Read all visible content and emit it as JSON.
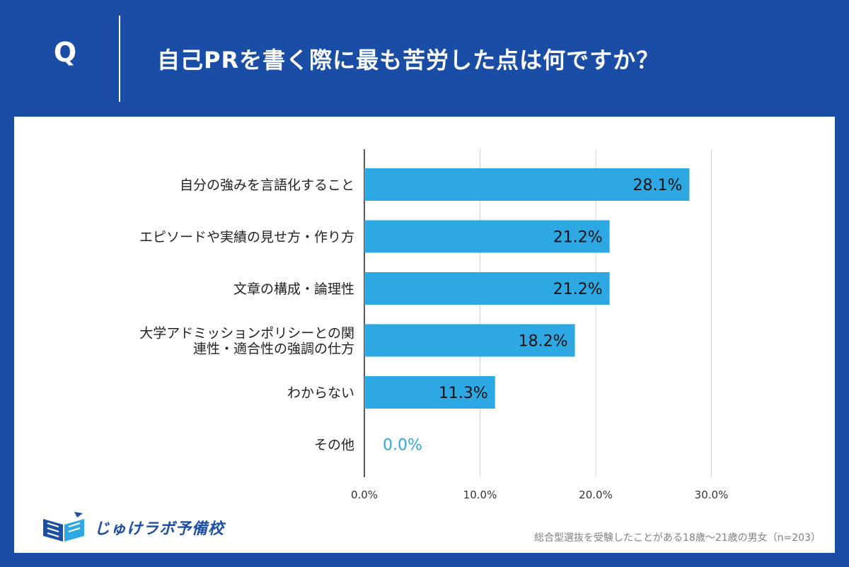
{
  "question": {
    "mark": "Q",
    "text": "自己PRを書く際に最も苦労した点は何ですか？"
  },
  "colors": {
    "background": "#1a4ea6",
    "bar": "#2ea8e2",
    "zero_label": "#2ea8e2",
    "grid": "#d0d0d0",
    "axis": "#222222"
  },
  "chart_data": {
    "type": "bar",
    "orientation": "horizontal",
    "categories": [
      [
        "自分の強みを言語化すること"
      ],
      [
        "エピソードや実績の見せ方・作り方"
      ],
      [
        "文章の構成・論理性"
      ],
      [
        "大学アドミッションポリシーとの関",
        "連性・適合性の強調の仕方"
      ],
      [
        "わからない"
      ],
      [
        "その他"
      ]
    ],
    "values": [
      28.1,
      21.2,
      21.2,
      18.2,
      11.3,
      0.0
    ],
    "value_labels": [
      "28.1%",
      "21.2%",
      "21.2%",
      "18.2%",
      "11.3%",
      "0.0%"
    ],
    "xlim": [
      0,
      30
    ],
    "ticks": [
      0,
      10,
      20,
      30
    ],
    "tick_labels": [
      "0.0%",
      "10.0%",
      "20.0%",
      "30.0%"
    ],
    "grid": true
  },
  "logo": {
    "text": "じゅけラボ予備校"
  },
  "footnote": "総合型選抜を受験したことがある18歳～21歳の男女（n=203）"
}
